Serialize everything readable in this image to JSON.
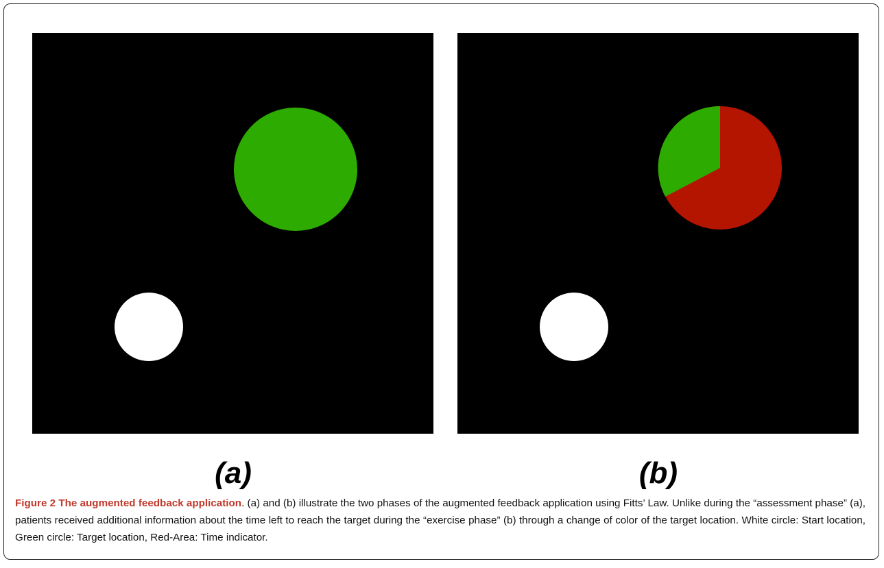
{
  "panels": [
    {
      "label": "(a)"
    },
    {
      "label": "(b)"
    }
  ],
  "caption": {
    "title": "Figure 2 The augmented feedback application",
    "text": ". (a) and (b) illustrate the two phases of the augmented feedback application using Fitts’ Law. Unlike during the “assessment phase” (a), patients received additional information about the time left to reach the target during the “exercise phase” (b) through a change of color of the target location. White circle: Start location, Green circle: Target location, Red-Area: Time indicator."
  }
}
